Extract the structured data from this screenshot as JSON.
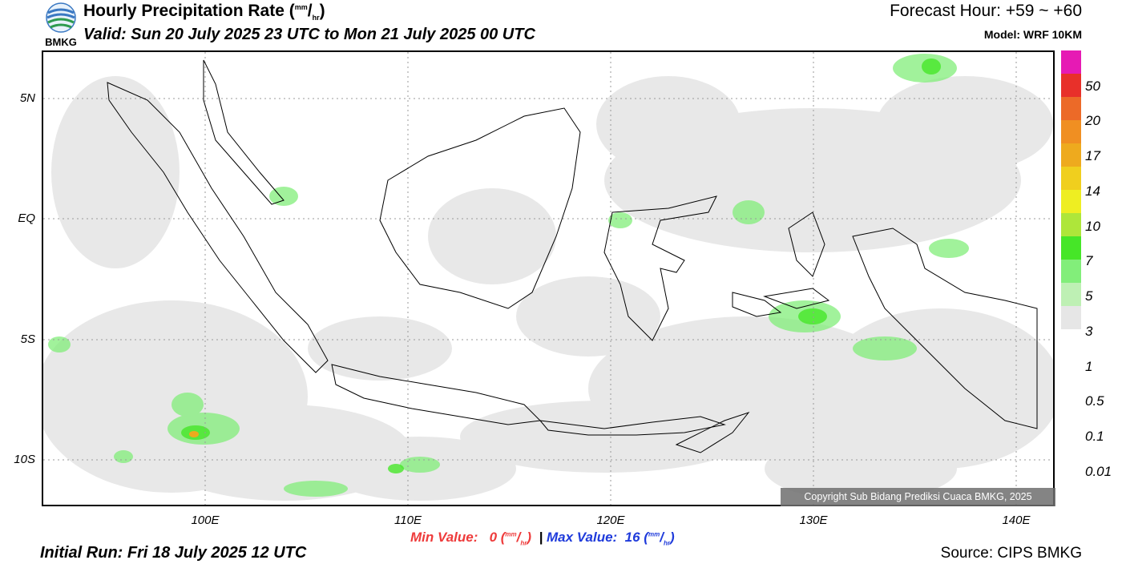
{
  "header": {
    "title_main": "Hourly Precipitation Rate (",
    "title_unit_num": "mm",
    "title_slash": "/",
    "title_unit_den": "hr",
    "title_close": ")",
    "valid": "Valid: Sun 20 July 2025 23 UTC to Mon 21 July 2025 00 UTC",
    "forecast_hour": "Forecast Hour: +59 ~ +60",
    "model": "Model: WRF 10KM",
    "logo_text": "BMKG"
  },
  "axes": {
    "lat_labels": [
      "5N",
      "EQ",
      "5S",
      "10S"
    ],
    "lon_labels": [
      "100E",
      "110E",
      "120E",
      "130E",
      "140E"
    ]
  },
  "legend": {
    "labels": [
      "50",
      "20",
      "17",
      "14",
      "10",
      "7",
      "5",
      "3",
      "1",
      "0.5",
      "0.1",
      "0.01"
    ],
    "colors": [
      "#e61ab4",
      "#e8302a",
      "#ec6a28",
      "#f08f22",
      "#eeaa1e",
      "#f0cf1e",
      "#eeee22",
      "#aee63a",
      "#46e628",
      "#82ee7a",
      "#bef0b4",
      "#e6e6e6"
    ]
  },
  "footer": {
    "min_label": "Min Value:",
    "min_value": "0",
    "min_unit_num": "mm",
    "min_unit_den": "hr",
    "separator": "|",
    "max_label": "Max Value:",
    "max_value": "16",
    "max_unit_num": "mm",
    "max_unit_den": "hr",
    "initial_run": "Initial Run: Fri 18 July 2025 12 UTC",
    "source": "Source: CIPS BMKG",
    "copyright": "Copyright Sub Bidang Prediksi Cuaca BMKG, 2025"
  }
}
